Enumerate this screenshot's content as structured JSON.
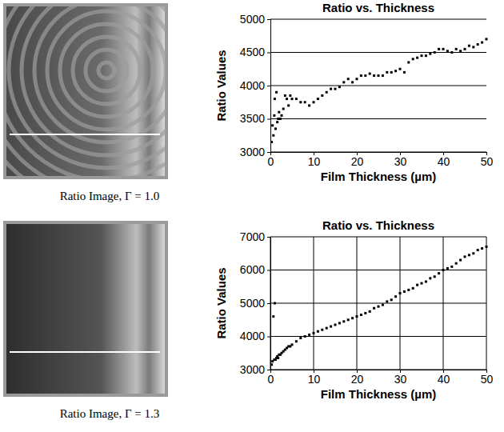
{
  "chart_data": [
    {
      "type": "scatter",
      "title": "Ratio vs. Thickness",
      "x_label": "Film Thickness (µm)",
      "y_label": "Ratio Values",
      "annotations": [
        "Ratio Image, Γ = 1.0"
      ],
      "xlim": [
        0,
        50
      ],
      "xticks": [
        0,
        10,
        20,
        30,
        40,
        50
      ],
      "ylim": [
        3000,
        5000
      ],
      "yticks": [
        3000,
        3500,
        4000,
        4500,
        5000
      ],
      "grid": "y",
      "color": "#000000",
      "marker": "square",
      "x": [
        0.3,
        0.5,
        0.7,
        0.9,
        1.0,
        1.2,
        1.4,
        1.6,
        1.8,
        2.0,
        2.3,
        2.6,
        3.0,
        3.4,
        3.8,
        4.2,
        4.6,
        5.0,
        6,
        7,
        8,
        9,
        10,
        11,
        12,
        13,
        14,
        15,
        16,
        17,
        18,
        19,
        20,
        21,
        22,
        23,
        24,
        25,
        26,
        27,
        28,
        29,
        30,
        31,
        32,
        33,
        34,
        35,
        36,
        37,
        38,
        39,
        40,
        41,
        42,
        43,
        44,
        45,
        46,
        47,
        48,
        49,
        50
      ],
      "values": [
        3150,
        3400,
        3250,
        3550,
        3800,
        3350,
        3900,
        3450,
        3500,
        3600,
        3500,
        3550,
        3650,
        3850,
        3800,
        3700,
        3850,
        3800,
        3800,
        3750,
        3750,
        3700,
        3750,
        3800,
        3850,
        3900,
        3950,
        3950,
        3980,
        4050,
        4100,
        4050,
        4100,
        4150,
        4150,
        4180,
        4150,
        4150,
        4150,
        4200,
        4200,
        4220,
        4250,
        4200,
        4350,
        4400,
        4420,
        4450,
        4450,
        4480,
        4500,
        4550,
        4550,
        4520,
        4500,
        4550,
        4520,
        4550,
        4600,
        4580,
        4620,
        4650,
        4700
      ]
    },
    {
      "type": "scatter",
      "title": "Ratio vs. Thickness",
      "x_label": "Film Thickness (µm)",
      "y_label": "Ratio Values",
      "annotations": [
        "Ratio Image, Γ = 1.3"
      ],
      "xlim": [
        0,
        50
      ],
      "xticks": [
        0,
        10,
        20,
        30,
        40,
        50
      ],
      "ylim": [
        3000,
        7000
      ],
      "yticks": [
        3000,
        4000,
        5000,
        6000,
        7000
      ],
      "grid": true,
      "color": "#000000",
      "marker": "square",
      "x": [
        0.3,
        0.5,
        0.7,
        0.9,
        1.0,
        1.2,
        1.4,
        1.6,
        1.8,
        2.0,
        2.3,
        2.6,
        3.0,
        3.4,
        3.8,
        4.2,
        4.6,
        5.0,
        6,
        7,
        8,
        9,
        10,
        11,
        12,
        13,
        14,
        15,
        16,
        17,
        18,
        19,
        20,
        21,
        22,
        23,
        24,
        25,
        26,
        27,
        28,
        29,
        30,
        31,
        32,
        33,
        34,
        35,
        36,
        37,
        38,
        39,
        40,
        41,
        42,
        43,
        44,
        45,
        46,
        47,
        48,
        49,
        50
      ],
      "values": [
        3150,
        3250,
        4600,
        3300,
        5000,
        3300,
        3350,
        3400,
        3350,
        3450,
        3450,
        3500,
        3550,
        3600,
        3650,
        3700,
        3700,
        3750,
        3850,
        3950,
        4000,
        4050,
        4100,
        4150,
        4200,
        4250,
        4300,
        4350,
        4400,
        4450,
        4500,
        4550,
        4600,
        4650,
        4700,
        4750,
        4850,
        4900,
        4950,
        5050,
        5100,
        5200,
        5300,
        5350,
        5400,
        5450,
        5550,
        5600,
        5650,
        5750,
        5800,
        5900,
        6000,
        6050,
        6100,
        6200,
        6300,
        6400,
        6450,
        6500,
        6600,
        6650,
        6700
      ]
    }
  ]
}
